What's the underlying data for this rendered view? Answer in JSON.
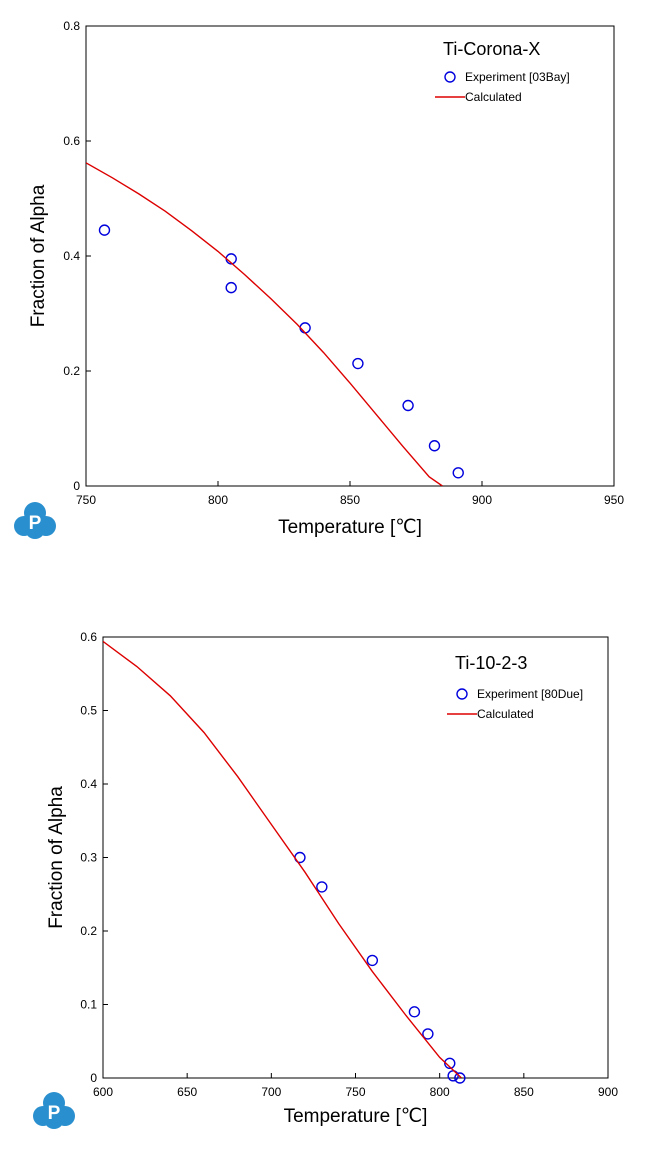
{
  "chart_data": [
    {
      "type": "scatter",
      "title": "Ti-Corona-X",
      "xlabel": "Temperature [℃]",
      "ylabel": "Fraction of Alpha",
      "xlim": [
        750,
        950
      ],
      "ylim": [
        0,
        0.8
      ],
      "xticks": [
        "750",
        "800",
        "850",
        "900",
        "950"
      ],
      "yticks": [
        "0",
        "0.2",
        "0.4",
        "0.6",
        "0.8"
      ],
      "legend_position": "top-right",
      "series": [
        {
          "name": "Experiment [03Bay]",
          "kind": "points",
          "marker": "open-circle",
          "color": "#0000dd",
          "x": [
            757,
            805,
            805,
            833,
            853,
            872,
            882,
            891
          ],
          "y": [
            0.445,
            0.395,
            0.345,
            0.275,
            0.213,
            0.14,
            0.07,
            0.023
          ]
        },
        {
          "name": "Calculated",
          "kind": "line",
          "color": "#dd0000",
          "x": [
            750,
            760,
            770,
            780,
            790,
            800,
            810,
            820,
            830,
            840,
            850,
            860,
            870,
            880,
            885
          ],
          "y": [
            0.562,
            0.536,
            0.508,
            0.478,
            0.444,
            0.408,
            0.368,
            0.326,
            0.281,
            0.232,
            0.179,
            0.124,
            0.069,
            0.016,
            0
          ]
        }
      ]
    },
    {
      "type": "scatter",
      "title": "Ti-10-2-3",
      "xlabel": "Temperature [℃]",
      "ylabel": "Fraction of Alpha",
      "xlim": [
        600,
        900
      ],
      "ylim": [
        0,
        0.6
      ],
      "xticks": [
        "600",
        "650",
        "700",
        "750",
        "800",
        "850",
        "900"
      ],
      "yticks": [
        "0",
        "0.1",
        "0.2",
        "0.3",
        "0.4",
        "0.5",
        "0.6"
      ],
      "legend_position": "top-right",
      "series": [
        {
          "name": "Experiment [80Due]",
          "kind": "points",
          "marker": "open-circle",
          "color": "#0000dd",
          "x": [
            717,
            730,
            760,
            785,
            793,
            806,
            808,
            812
          ],
          "y": [
            0.3,
            0.26,
            0.16,
            0.09,
            0.06,
            0.02,
            0.003,
            0
          ]
        },
        {
          "name": "Calculated",
          "kind": "line",
          "color": "#dd0000",
          "x": [
            600,
            620,
            640,
            660,
            680,
            700,
            720,
            740,
            760,
            780,
            800,
            813
          ],
          "y": [
            0.594,
            0.56,
            0.52,
            0.47,
            0.41,
            0.345,
            0.28,
            0.21,
            0.145,
            0.085,
            0.028,
            0
          ]
        }
      ]
    }
  ],
  "logo": {
    "text": "P",
    "color": "#2a8fce"
  }
}
